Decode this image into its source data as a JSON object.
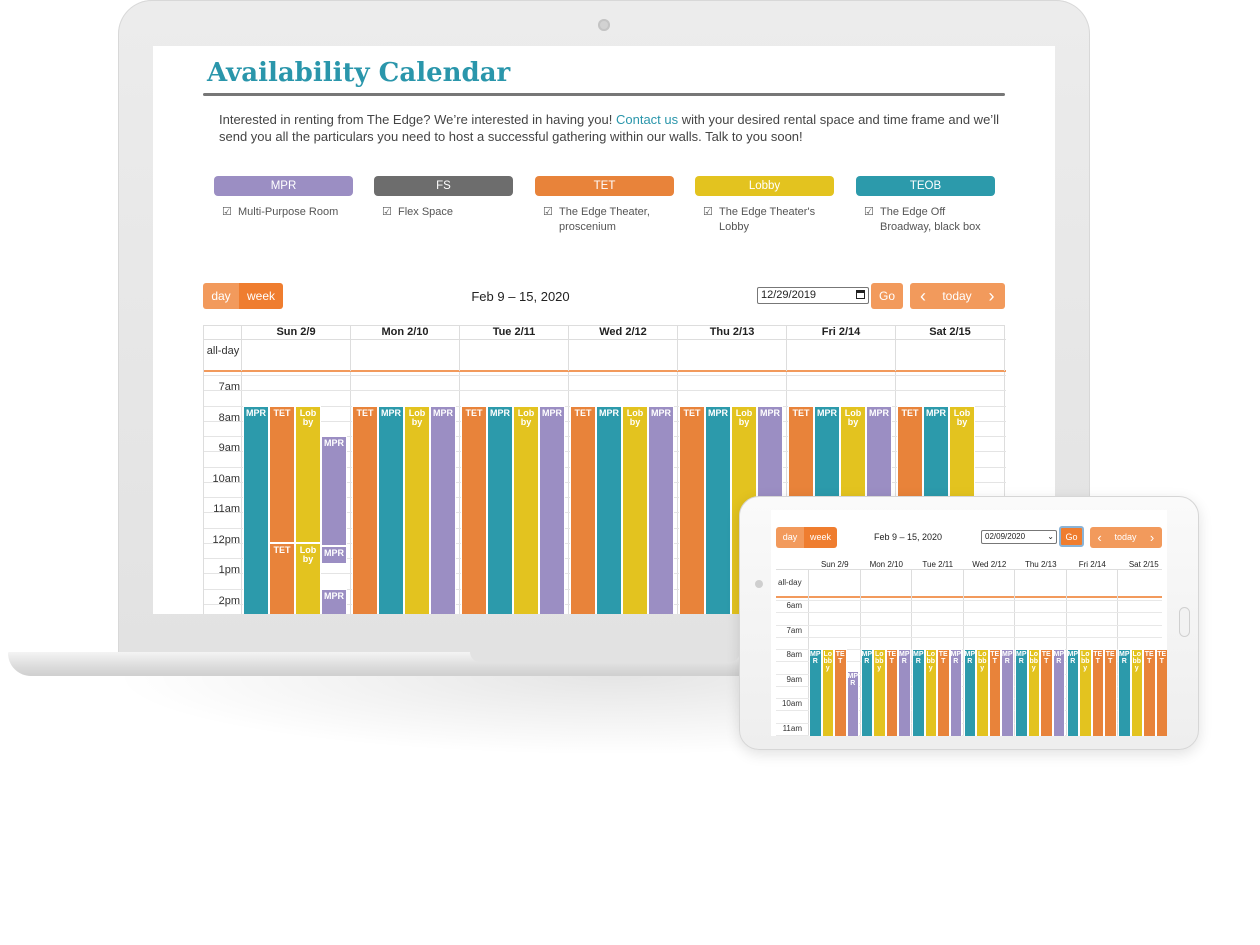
{
  "page": {
    "title": "Availability Calendar",
    "intro_before": "Interested in renting from The Edge? We’re interested in having you! ",
    "intro_link": "Contact us",
    "intro_after": " with your desired rental space and time frame and we’ll send you all the particulars you need to host a successful gathering within our walls. Talk to you soon!"
  },
  "legend": [
    {
      "label": "MPR",
      "desc": "Multi-Purpose Room",
      "color": "#9b8ec3"
    },
    {
      "label": "FS",
      "desc": "Flex Space",
      "color": "#6d6d6d"
    },
    {
      "label": "TET",
      "desc": "The Edge Theater, proscenium",
      "color": "#e8833a"
    },
    {
      "label": "Lobby",
      "desc": "The Edge Theater's Lobby",
      "color": "#e3c31f"
    },
    {
      "label": "TEOB",
      "desc": "The Edge Off Broadway, black box",
      "color": "#2c9aab"
    }
  ],
  "checkbox_glyph": "☑",
  "toolbar": {
    "day_label": "day",
    "week_label": "week",
    "range_title": "Feb 9 – 15, 2020",
    "date_value": "12/29/2019",
    "go_label": "Go",
    "prev_glyph": "‹",
    "today_label": "today",
    "next_glyph": "›"
  },
  "calendar": {
    "all_day_label": "all-day",
    "days": [
      "Sun 2/9",
      "Mon 2/10",
      "Tue 2/11",
      "Wed 2/12",
      "Thu 2/13",
      "Fri 2/14",
      "Sat 2/15"
    ],
    "times": [
      "7am",
      "8am",
      "9am",
      "10am",
      "11am",
      "12pm",
      "1pm",
      "2pm"
    ]
  },
  "tablet": {
    "day_label": "day",
    "week_label": "week",
    "range_title": "Feb 9 – 15, 2020",
    "date_value": "02/09/2020",
    "go_label": "Go",
    "prev_glyph": "‹",
    "today_label": "today",
    "next_glyph": "›",
    "all_day_label": "all-day",
    "days": [
      "Sun 2/9",
      "Mon 2/10",
      "Tue 2/11",
      "Wed 2/12",
      "Thu 2/13",
      "Fri 2/14",
      "Sat 2/15"
    ],
    "times": [
      "6am",
      "7am",
      "8am",
      "9am",
      "10am",
      "11am"
    ]
  },
  "colors": {
    "accent_orange": "#ef7d2f",
    "orange_light": "#f29a5c",
    "teal": "#2c9aab",
    "yellow": "#e3c31f",
    "purple": "#9b8ec3",
    "orange": "#e8833a"
  }
}
